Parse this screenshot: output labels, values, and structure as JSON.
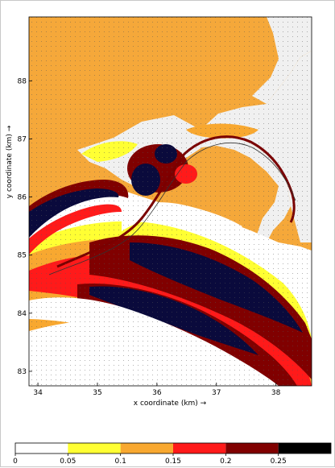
{
  "chart_data": {
    "type": "heatmap",
    "xlabel": "x coordinate (km) →",
    "ylabel": "y coordinate (km) →",
    "xlim": [
      33.85,
      38.6
    ],
    "ylim": [
      82.75,
      89.1
    ],
    "x_ticks": [
      34,
      35,
      36,
      37,
      38
    ],
    "y_ticks": [
      83,
      84,
      85,
      86,
      87,
      88
    ],
    "colorbar": {
      "boundaries": [
        0,
        0.05,
        0.1,
        0.15,
        0.2,
        0.25,
        0.3
      ],
      "tick_labels": [
        "0",
        "0.05",
        "0.1",
        "0.15",
        "0.2",
        "0.25"
      ],
      "colors": [
        "#ffffff",
        "#ffff33",
        "#f8a830",
        "#ff1a1a",
        "#800000",
        "#000000"
      ]
    },
    "colors": {
      "land": "#f5a83a",
      "water_low": "#ffffff",
      "band_yellow": "#ffff33",
      "band_orange": "#f8a830",
      "band_red": "#ff1a1a",
      "band_darkred": "#800000",
      "band_navy": "#0a0a3c",
      "harbour": "#f0f0f0",
      "channel": "#7a0000"
    }
  }
}
